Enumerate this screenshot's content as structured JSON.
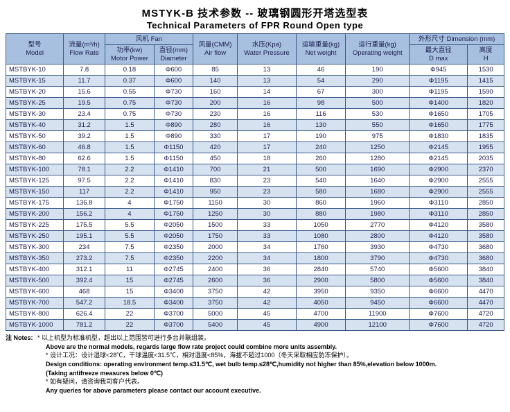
{
  "title": {
    "cn": "MSTYK-B 技术参数 -- 玻璃钢圆形开塔选型表",
    "en": "Technical Parameters of FPR Round Open type"
  },
  "headers": {
    "model": {
      "cn": "型号",
      "en": "Model"
    },
    "flow": {
      "cn": "流量(m³/h)",
      "en": "Flow Rate"
    },
    "fan": {
      "cn": "风机",
      "en": "Fan"
    },
    "motor": {
      "cn": "功率(kw)",
      "en": "Motor Power"
    },
    "diameter": {
      "cn": "直径(mm)",
      "en": "Diameter"
    },
    "airflow": {
      "cn": "风量(CMM)",
      "en": "Air flow"
    },
    "pressure": {
      "cn": "水压(Kpa)",
      "en": "Water Pressure"
    },
    "netw": {
      "cn": "运输重量(kg)",
      "en": "Net weight"
    },
    "opw": {
      "cn": "运行重量(kg)",
      "en": "Operating weight"
    },
    "dim": {
      "cn": "外形尺寸",
      "en": "Dimension (mm)"
    },
    "dmax": {
      "cn": "最大直径",
      "en": "D max"
    },
    "h": {
      "cn": "高度",
      "en": "H"
    }
  },
  "rows": [
    [
      "MSTBYK-10",
      "7.8",
      "0.18",
      "Φ600",
      "85",
      "13",
      "46",
      "190",
      "Φ945",
      "1530"
    ],
    [
      "MSTBYK-15",
      "11.7",
      "0.37",
      "Φ600",
      "140",
      "13",
      "54",
      "290",
      "Φ1195",
      "1415"
    ],
    [
      "MSTBYK-20",
      "15.6",
      "0.55",
      "Φ730",
      "160",
      "14",
      "67",
      "300",
      "Φ1195",
      "1590"
    ],
    [
      "MSTBYK-25",
      "19.5",
      "0.75",
      "Φ730",
      "200",
      "16",
      "98",
      "500",
      "Φ1400",
      "1820"
    ],
    [
      "MSTBYK-30",
      "23.4",
      "0.75",
      "Φ730",
      "230",
      "16",
      "116",
      "530",
      "Φ1650",
      "1705"
    ],
    [
      "MSTBYK-40",
      "31.2",
      "1.5",
      "Φ890",
      "280",
      "16",
      "130",
      "550",
      "Φ1650",
      "1775"
    ],
    [
      "MSTBYK-50",
      "39.2",
      "1.5",
      "Φ890",
      "330",
      "17",
      "190",
      "975",
      "Φ1830",
      "1835"
    ],
    [
      "MSTBYK-60",
      "46.8",
      "1.5",
      "Φ1150",
      "420",
      "17",
      "240",
      "1250",
      "Φ2145",
      "1955"
    ],
    [
      "MSTBYK-80",
      "62.6",
      "1.5",
      "Φ1150",
      "450",
      "18",
      "260",
      "1280",
      "Φ2145",
      "2035"
    ],
    [
      "MSTBYK-100",
      "78.1",
      "2.2",
      "Φ1410",
      "700",
      "21",
      "500",
      "1690",
      "Φ2900",
      "2370"
    ],
    [
      "MSTBYK-125",
      "97.5",
      "2.2",
      "Φ1410",
      "830",
      "23",
      "540",
      "1640",
      "Φ2900",
      "2555"
    ],
    [
      "MSTBYK-150",
      "117",
      "2.2",
      "Φ1410",
      "950",
      "23",
      "580",
      "1680",
      "Φ2900",
      "2555"
    ],
    [
      "MSTBYK-175",
      "136.8",
      "4",
      "Φ1750",
      "1150",
      "30",
      "860",
      "1960",
      "Φ3110",
      "2850"
    ],
    [
      "MSTBYK-200",
      "156.2",
      "4",
      "Φ1750",
      "1250",
      "30",
      "880",
      "1980",
      "Φ3110",
      "2850"
    ],
    [
      "MSTBYK-225",
      "175.5",
      "5.5",
      "Φ2050",
      "1500",
      "33",
      "1050",
      "2770",
      "Φ4120",
      "3580"
    ],
    [
      "MSTBYK-250",
      "195.1",
      "5.5",
      "Φ2050",
      "1750",
      "33",
      "1080",
      "2800",
      "Φ4120",
      "3580"
    ],
    [
      "MSTBYK-300",
      "234",
      "7.5",
      "Φ2350",
      "2000",
      "34",
      "1760",
      "3930",
      "Φ4730",
      "3680"
    ],
    [
      "MSTBYK-350",
      "273.2",
      "7.5",
      "Φ2350",
      "2200",
      "34",
      "1800",
      "3790",
      "Φ4730",
      "3680"
    ],
    [
      "MSTBYK-400",
      "312.1",
      "11",
      "Φ2745",
      "2400",
      "36",
      "2840",
      "5740",
      "Φ5600",
      "3840"
    ],
    [
      "MSTBYK-500",
      "392.4",
      "15",
      "Φ2745",
      "2600",
      "36",
      "2900",
      "5800",
      "Φ5600",
      "3840"
    ],
    [
      "MSTBYK-600",
      "468",
      "15",
      "Φ3400",
      "3750",
      "42",
      "3950",
      "9350",
      "Φ6600",
      "4470"
    ],
    [
      "MSTBYK-700",
      "547.2",
      "18.5",
      "Φ3400",
      "3750",
      "42",
      "4050",
      "9450",
      "Φ6600",
      "4470"
    ],
    [
      "MSTBYK-800",
      "626.4",
      "22",
      "Φ3700",
      "5000",
      "45",
      "4700",
      "11900",
      "Φ7600",
      "4720"
    ],
    [
      "MSTBYK-1000",
      "781.2",
      "22",
      "Φ3700",
      "5400",
      "45",
      "4900",
      "12100",
      "Φ7600",
      "4720"
    ]
  ],
  "notes": {
    "label": "注 Notes:",
    "lines": [
      {
        "cn": "* 以上机型为标准机型，超出以上范围皆可进行多台并联组装。",
        "bold": false
      },
      {
        "en": "Above are the normal models, regards large flow rate project could combine more units assembly.",
        "bold": true
      },
      {
        "cn": "* 设计工况：设计湿球<28℃，干球温度<31.5℃，相对湿度<85%，海拔不超过1000（冬天采取相应防冻保护）。",
        "bold": false
      },
      {
        "en": "Design conditions: operating environment temp.≤31.5℃, wet bulb temp.≤28℃,humidity not higher than 85%,elevation below 1000m.",
        "bold": true
      },
      {
        "en": "(Taking antifreeze measures below 0℃)",
        "bold": true
      },
      {
        "cn": "* 如有疑问，请咨询我司客户代表。",
        "bold": false
      },
      {
        "en": "Any queries for above parameters please contact our account executive.",
        "bold": true
      }
    ]
  }
}
